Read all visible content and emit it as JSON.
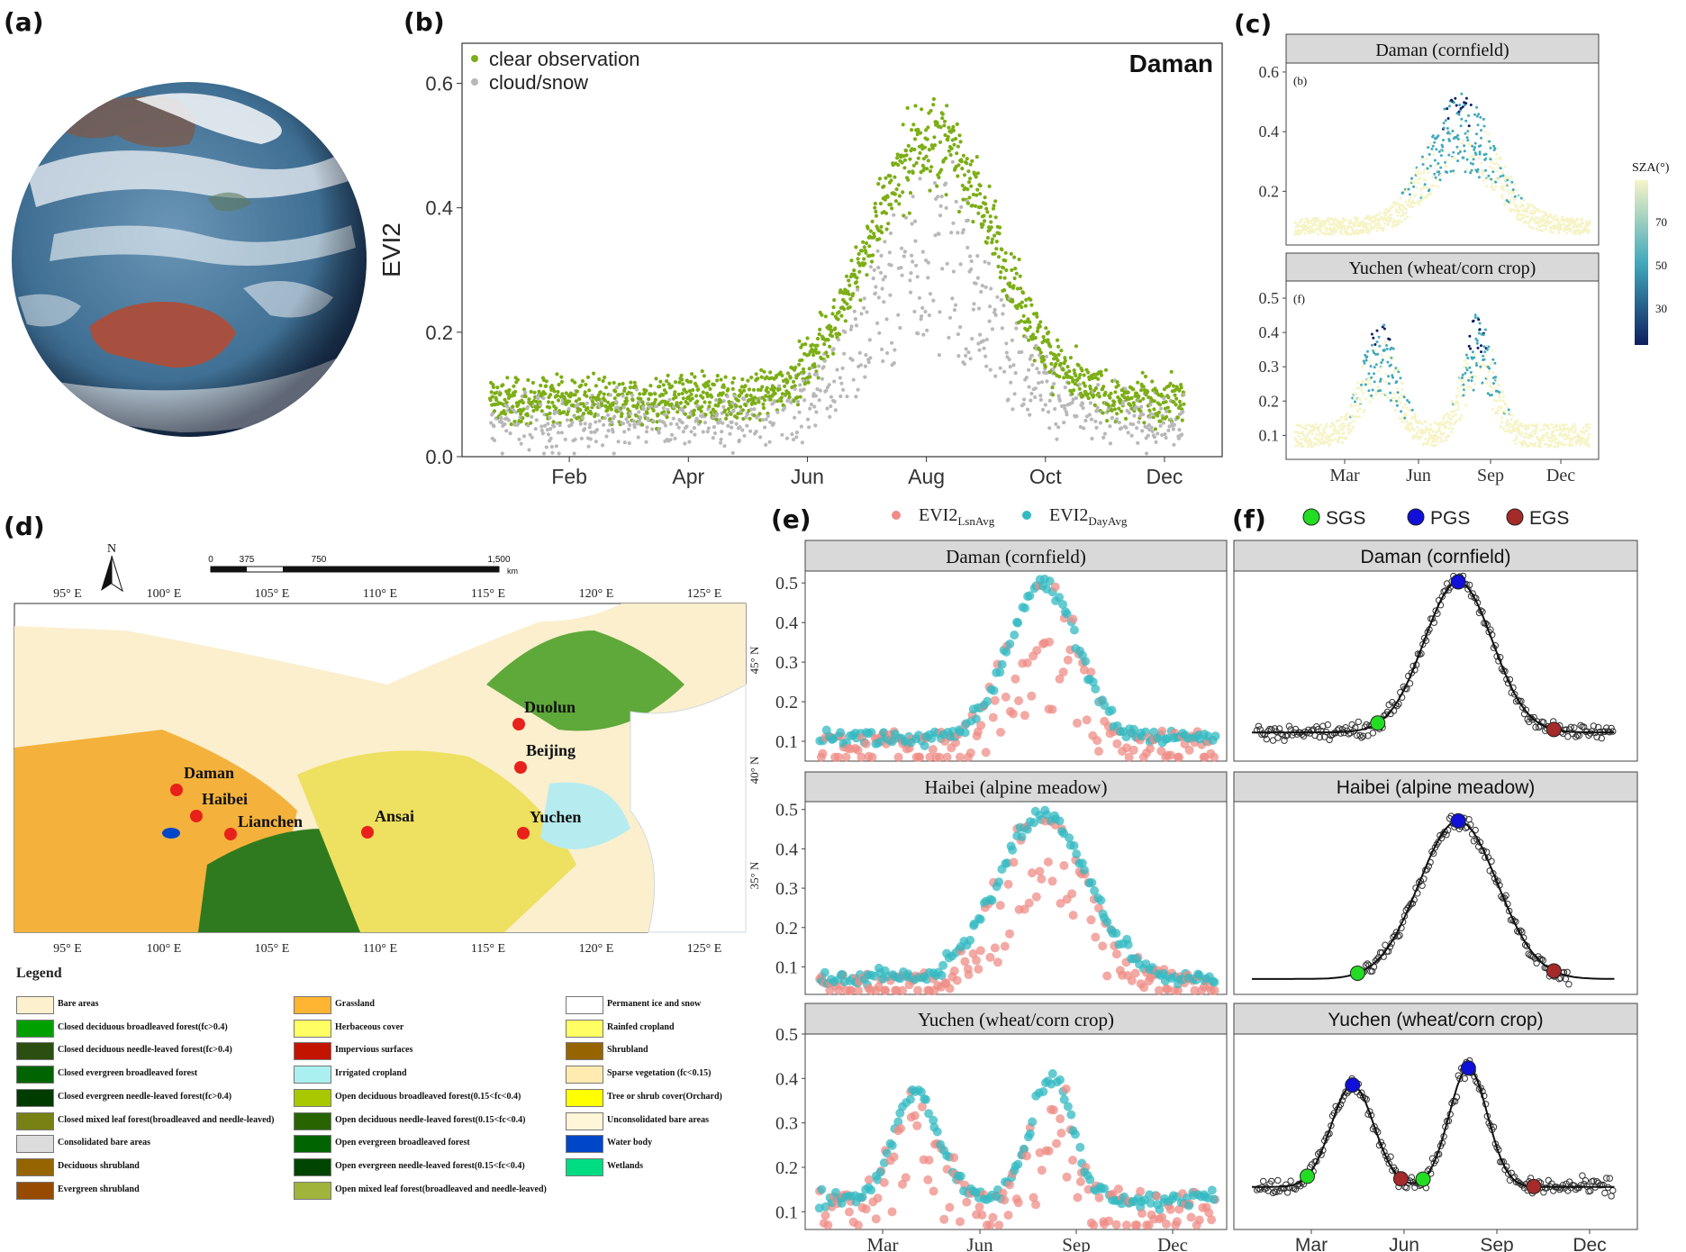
{
  "panels": {
    "a": {
      "label": "(a)"
    },
    "b": {
      "label": "(b)"
    },
    "c": {
      "label": "(c)"
    },
    "d": {
      "label": "(d)"
    },
    "e": {
      "label": "(e)"
    },
    "f": {
      "label": "(f)"
    }
  },
  "chart_data": [
    {
      "id": "b",
      "type": "scatter",
      "title": "Daman",
      "ylabel": "EVI2",
      "ylim": [
        0,
        0.65
      ],
      "yticks": [
        "0.0",
        "0.2",
        "0.4",
        "0.6"
      ],
      "ytick_values": [
        0.0,
        0.2,
        0.4,
        0.6
      ],
      "xticks": [
        "Feb",
        "Apr",
        "Jun",
        "Aug",
        "Oct",
        "Dec"
      ],
      "xtick_days": [
        45,
        105,
        165,
        225,
        285,
        345
      ],
      "xlim": [
        0,
        365
      ],
      "series": [
        {
          "name": "clear observation",
          "color": "#7cae16"
        },
        {
          "name": "cloud/snow",
          "color": "#b8b8b8"
        }
      ]
    },
    {
      "id": "c",
      "type": "scatter",
      "colorbar_label": "SZA(°)",
      "colorbar_ticks": [
        "70",
        "50",
        "30"
      ],
      "colors": [
        "#f6f4c6",
        "#41a9bc",
        "#0e1f61"
      ],
      "xticks": [
        "Mar",
        "Jun",
        "Sep",
        "Dec"
      ],
      "facets": [
        {
          "title": "Daman (cornfield)",
          "tag": "(b)",
          "yticks": [
            "0.6",
            "0.4",
            "0.2"
          ],
          "ytick_values": [
            0.6,
            0.4,
            0.2
          ],
          "ylim": [
            0.02,
            0.63
          ]
        },
        {
          "title": "Yuchen (wheat/corn crop)",
          "tag": "(f)",
          "yticks": [
            "0.5",
            "0.4",
            "0.3",
            "0.2",
            "0.1"
          ],
          "ytick_values": [
            0.5,
            0.4,
            0.3,
            0.2,
            0.1
          ],
          "ylim": [
            0.03,
            0.55
          ]
        }
      ]
    },
    {
      "id": "e",
      "type": "scatter",
      "legend": [
        {
          "name": "EVI2",
          "sub": "LsnAvg",
          "color": "#ef8c86"
        },
        {
          "name": "EVI2",
          "sub": "DayAvg",
          "color": "#33b9c1"
        }
      ],
      "xticks": [
        "Mar",
        "Jun",
        "Sep",
        "Dec"
      ],
      "facets": [
        {
          "title": "Daman (cornfield)",
          "yticks": [
            "0.5",
            "0.4",
            "0.3",
            "0.2",
            "0.1"
          ],
          "ytick_values": [
            0.5,
            0.4,
            0.3,
            0.2,
            0.1
          ],
          "ylim": [
            0.05,
            0.53
          ]
        },
        {
          "title": "Haibei (alpine meadow)",
          "yticks": [
            "0.5",
            "0.4",
            "0.3",
            "0.2",
            "0.1"
          ],
          "ytick_values": [
            0.5,
            0.4,
            0.3,
            0.2,
            0.1
          ],
          "ylim": [
            0.03,
            0.52
          ]
        },
        {
          "title": "Yuchen (wheat/corn crop)",
          "yticks": [
            "0.5",
            "0.4",
            "0.3",
            "0.2",
            "0.1"
          ],
          "ytick_values": [
            0.5,
            0.4,
            0.3,
            0.2,
            0.1
          ],
          "ylim": [
            0.06,
            0.5
          ]
        }
      ]
    },
    {
      "id": "f",
      "type": "scatter",
      "legend": [
        {
          "name": "SGS",
          "color": "#22dd22"
        },
        {
          "name": "PGS",
          "color": "#1010d8"
        },
        {
          "name": "EGS",
          "color": "#a52a2a"
        }
      ],
      "xticks": [
        "Mar",
        "Jun",
        "Sep",
        "Dec"
      ],
      "facets": [
        {
          "title": "Daman (cornfield)"
        },
        {
          "title": "Haibei (alpine meadow)"
        },
        {
          "title": "Yuchen (wheat/corn crop)"
        }
      ]
    }
  ],
  "map": {
    "north": "N",
    "scalebar": [
      "0",
      "375",
      "750",
      "1,500"
    ],
    "scale_unit": "km",
    "lon_labels": [
      "95° E",
      "100° E",
      "105° E",
      "110° E",
      "115° E",
      "120° E",
      "125° E"
    ],
    "lat_labels": [
      "45° N",
      "40° N",
      "35° N"
    ],
    "sites": [
      "Duolun",
      "Beijing",
      "Daman",
      "Haibei",
      "Lianchen",
      "Ansai",
      "Yuchen"
    ],
    "legend_title": "Legend",
    "legend": [
      {
        "label": "Bare areas",
        "color": "#fcf0cf"
      },
      {
        "label": "Closed deciduous broadleaved forest(fc>0.4)",
        "color": "#00a000"
      },
      {
        "label": "Closed deciduous needle-leaved forest(fc>0.4)",
        "color": "#2a4f10"
      },
      {
        "label": "Closed evergreen broadleaved forest",
        "color": "#006400"
      },
      {
        "label": "Closed evergreen needle-leaved forest(fc>0.4)",
        "color": "#003c00"
      },
      {
        "label": "Closed mixed leaf forest(broadleaved and needle-leaved)",
        "color": "#788214"
      },
      {
        "label": "Consolidated bare areas",
        "color": "#dcdcdc"
      },
      {
        "label": "Deciduous shrubland",
        "color": "#966400"
      },
      {
        "label": "Evergreen shrubland",
        "color": "#964b00"
      },
      {
        "label": "Grassland",
        "color": "#ffb432"
      },
      {
        "label": "Herbaceous cover",
        "color": "#ffff64"
      },
      {
        "label": "Impervious surfaces",
        "color": "#c31400"
      },
      {
        "label": "Irrigated cropland",
        "color": "#aaf0f0"
      },
      {
        "label": "Open deciduous broadleaved forest(0.15<fc<0.4)",
        "color": "#aac800"
      },
      {
        "label": "Open deciduous needle-leaved forest(0.15<fc<0.4)",
        "color": "#286400"
      },
      {
        "label": "Open evergreen broadleaved forest",
        "color": "#006400"
      },
      {
        "label": "Open evergreen needle-leaved forest(0.15<fc<0.4)",
        "color": "#004600"
      },
      {
        "label": "Open mixed leaf forest(broadleaved and needle-leaved)",
        "color": "#a0b43c"
      },
      {
        "label": "Permanent ice and snow",
        "color": "#ffffff"
      },
      {
        "label": "Rainfed cropland",
        "color": "#ffff64"
      },
      {
        "label": "Shrubland",
        "color": "#966400"
      },
      {
        "label": "Sparse vegetation (fc<0.15)",
        "color": "#ffebaf"
      },
      {
        "label": "Tree or shrub cover(Orchard)",
        "color": "#ffff00"
      },
      {
        "label": "Unconsolidated bare areas",
        "color": "#fff5d7"
      },
      {
        "label": "Water body",
        "color": "#0046c8"
      },
      {
        "label": "Wetlands",
        "color": "#00dc82"
      }
    ]
  }
}
